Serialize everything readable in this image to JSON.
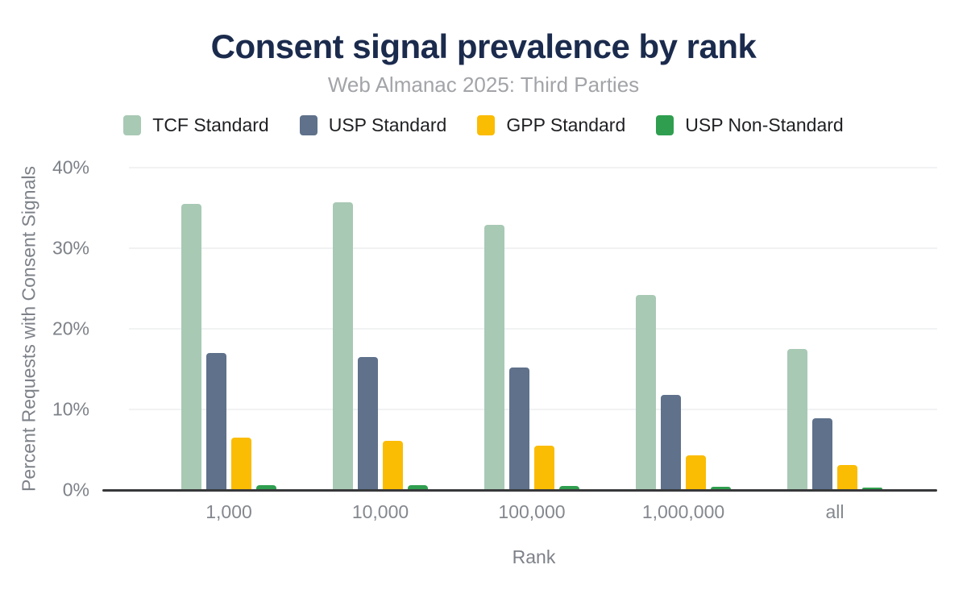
{
  "chart_data": {
    "type": "bar",
    "title": "Consent signal prevalence by rank",
    "subtitle": "Web Almanac 2025: Third Parties",
    "xlabel": "Rank",
    "ylabel": "Percent Requests with Consent Signals",
    "categories": [
      "1,000",
      "10,000",
      "100,000",
      "1,000,000",
      "all"
    ],
    "series": [
      {
        "name": "TCF Standard",
        "color": "#a8c9b4",
        "values": [
          35.4,
          35.6,
          32.8,
          24.1,
          17.4
        ]
      },
      {
        "name": "USP Standard",
        "color": "#5f718b",
        "values": [
          16.9,
          16.4,
          15.1,
          11.7,
          8.8
        ]
      },
      {
        "name": "GPP Standard",
        "color": "#fbbc04",
        "values": [
          6.4,
          6.0,
          5.4,
          4.2,
          3.0
        ]
      },
      {
        "name": "USP Non-Standard",
        "color": "#2f9e4f",
        "values": [
          0.5,
          0.5,
          0.4,
          0.3,
          0.2
        ]
      }
    ],
    "y_ticks": [
      {
        "label": "40%",
        "value": 40
      },
      {
        "label": "30%",
        "value": 30
      },
      {
        "label": "20%",
        "value": 20
      },
      {
        "label": "10%",
        "value": 10
      },
      {
        "label": "0%",
        "value": 0
      }
    ],
    "ylim": [
      0,
      40
    ],
    "grid": true,
    "legend_position": "top",
    "colors": {
      "title": "#1b2b4d",
      "subtitle": "#a2a4a8",
      "axis_text": "#7d8188",
      "axis_line": "#37383a",
      "gridline": "#f1f2f3",
      "background": "#ffffff"
    }
  }
}
